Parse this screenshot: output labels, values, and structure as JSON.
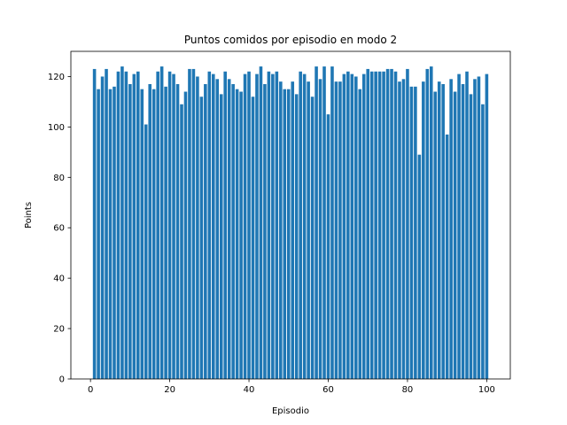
{
  "chart_data": {
    "type": "bar",
    "title": "Puntos comidos por episodio en modo 2",
    "xlabel": "Episodio",
    "ylabel": "Points",
    "xlim": [
      -4.95,
      105.95
    ],
    "ylim": [
      0,
      130
    ],
    "xticks": [
      0,
      20,
      40,
      60,
      80,
      100
    ],
    "yticks": [
      0,
      20,
      40,
      60,
      80,
      100,
      120
    ],
    "bar_color": "#1f77b4",
    "bar_width": 0.8,
    "grid": false,
    "x": [
      1,
      2,
      3,
      4,
      5,
      6,
      7,
      8,
      9,
      10,
      11,
      12,
      13,
      14,
      15,
      16,
      17,
      18,
      19,
      20,
      21,
      22,
      23,
      24,
      25,
      26,
      27,
      28,
      29,
      30,
      31,
      32,
      33,
      34,
      35,
      36,
      37,
      38,
      39,
      40,
      41,
      42,
      43,
      44,
      45,
      46,
      47,
      48,
      49,
      50,
      51,
      52,
      53,
      54,
      55,
      56,
      57,
      58,
      59,
      60,
      61,
      62,
      63,
      64,
      65,
      66,
      67,
      68,
      69,
      70,
      71,
      72,
      73,
      74,
      75,
      76,
      77,
      78,
      79,
      80,
      81,
      82,
      83,
      84,
      85,
      86,
      87,
      88,
      89,
      90,
      91,
      92,
      93,
      94,
      95,
      96,
      97,
      98,
      99,
      100
    ],
    "values": [
      123,
      115,
      120,
      123,
      115,
      116,
      122,
      124,
      122,
      117,
      121,
      122,
      115,
      101,
      117,
      115,
      122,
      124,
      116,
      122,
      121,
      117,
      109,
      114,
      123,
      123,
      120,
      112,
      117,
      122,
      121,
      119,
      113,
      122,
      119,
      117,
      115,
      114,
      121,
      122,
      112,
      121,
      124,
      117,
      122,
      121,
      122,
      118,
      115,
      115,
      118,
      113,
      122,
      121,
      118,
      112,
      124,
      119,
      124,
      105,
      124,
      118,
      118,
      121,
      122,
      121,
      120,
      115,
      121,
      123,
      122,
      122,
      122,
      122,
      123,
      123,
      122,
      118,
      119,
      123,
      116,
      116,
      89,
      118,
      123,
      124,
      114,
      118,
      117,
      97,
      119,
      114,
      121,
      117,
      122,
      113,
      119,
      120,
      109,
      121
    ]
  }
}
